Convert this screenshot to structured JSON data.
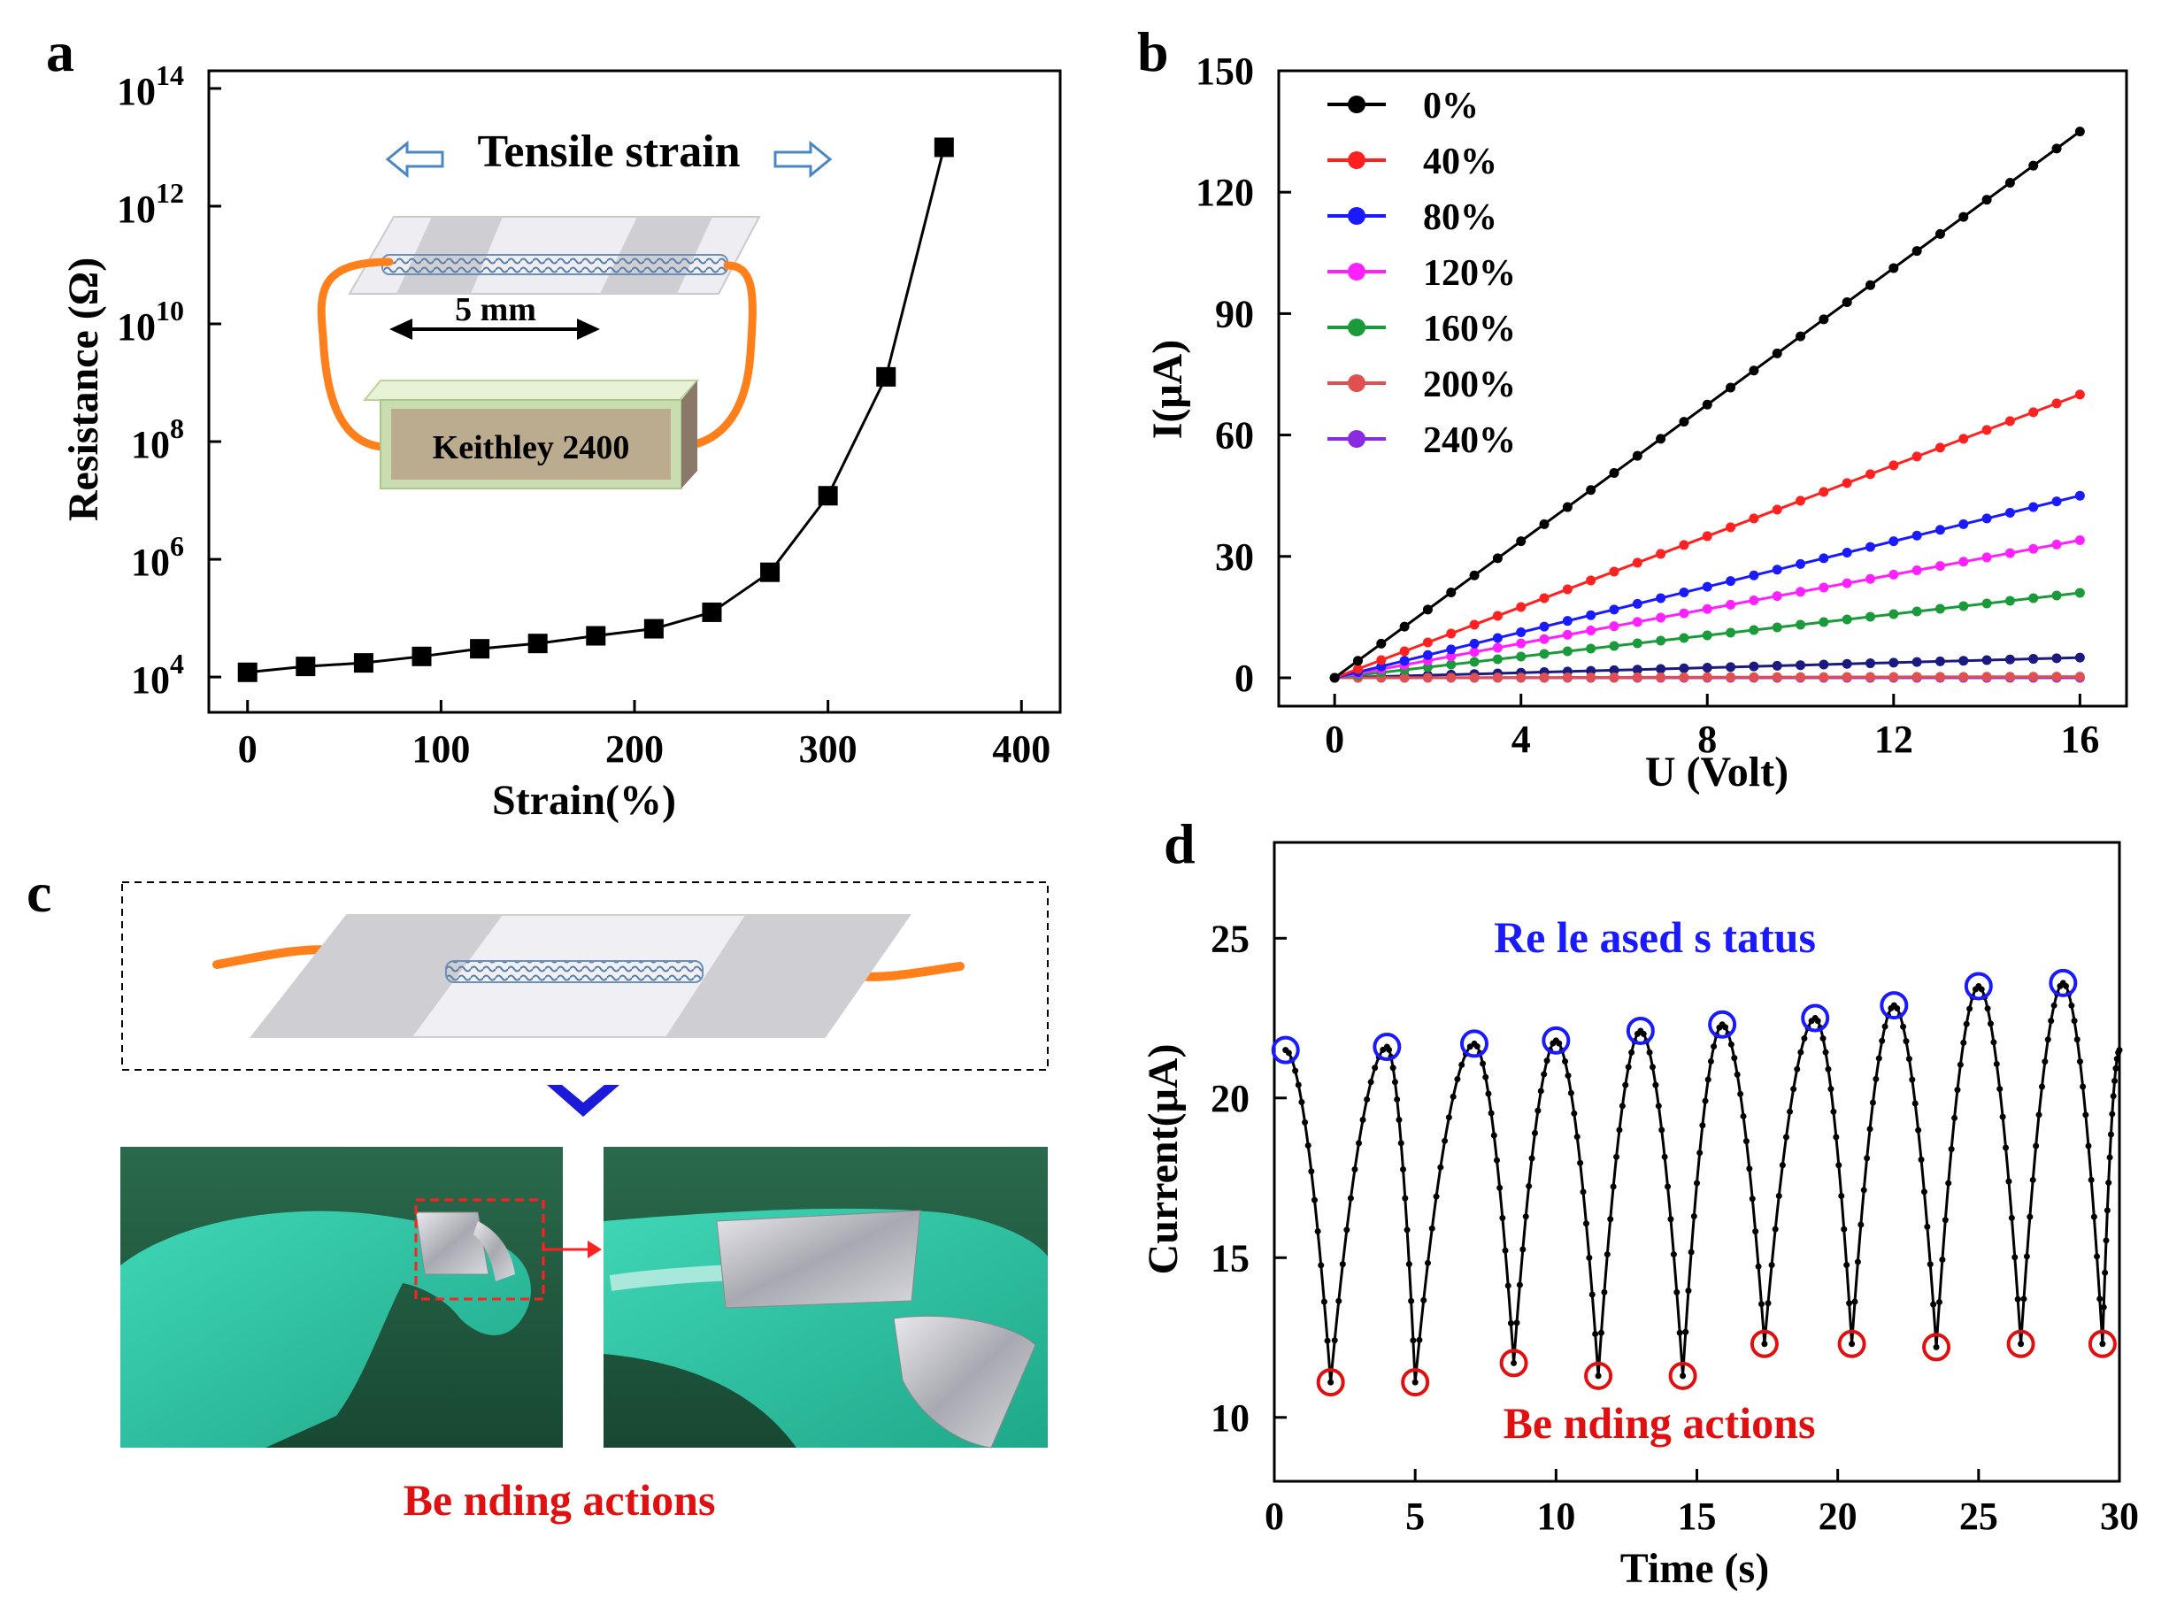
{
  "colors": {
    "black": "#000000",
    "red": "#ff2020",
    "blue": "#1a1aff",
    "magenta": "#ff20ff",
    "green": "#1a9a3a",
    "salmon": "#e05050",
    "purple": "#8a2be2",
    "orange": "#ff7f1a",
    "annot_blue": "#1a1aff",
    "annot_red": "#e01010",
    "arrow_blue": "#4a86c5",
    "marker_blue": "#1a1aff",
    "marker_red": "#e01010"
  },
  "chart_data": [
    {
      "panel": "a",
      "type": "line",
      "xlabel": "Strain(%)",
      "ylabel": "Resistance (Ω)",
      "xlim": [
        -20,
        420
      ],
      "ylim_log10": [
        3.4,
        14.3
      ],
      "yscale": "log",
      "xticks": [
        0,
        100,
        200,
        300,
        400
      ],
      "xtick_labels": [
        "0",
        "100",
        "200",
        "300",
        "400"
      ],
      "yticks_log10": [
        4,
        6,
        8,
        10,
        12,
        14
      ],
      "ytick_labels": [
        [
          "10",
          "4"
        ],
        [
          "10",
          "6"
        ],
        [
          "10",
          "8"
        ],
        [
          "10",
          "10"
        ],
        [
          "10",
          "12"
        ],
        [
          "10",
          "14"
        ]
      ],
      "series": [
        {
          "name": "Resistance",
          "marker": "square",
          "x": [
            0,
            30,
            60,
            90,
            120,
            150,
            180,
            210,
            240,
            270,
            300,
            330,
            360
          ],
          "y_log10": [
            4.08,
            4.18,
            4.24,
            4.35,
            4.48,
            4.57,
            4.7,
            4.82,
            5.1,
            5.78,
            7.08,
            9.1,
            13.0
          ]
        }
      ],
      "inset": {
        "title": "Tensile strain",
        "gap_label": "5 mm",
        "instrument_label": "Keithley 2400"
      }
    },
    {
      "panel": "b",
      "type": "line",
      "xlabel": "U (Volt)",
      "ylabel": "I(μA)",
      "xlim": [
        -1.2,
        17
      ],
      "ylim": [
        -7,
        150
      ],
      "xticks": [
        0,
        4,
        8,
        12,
        16
      ],
      "xtick_labels": [
        "0",
        "4",
        "8",
        "12",
        "16"
      ],
      "yticks": [
        0,
        30,
        60,
        90,
        120,
        150
      ],
      "ytick_labels": [
        "0",
        "30",
        "60",
        "90",
        "120",
        "150"
      ],
      "series": [
        {
          "name": "0%",
          "color": "#000000",
          "x_start": 0,
          "x_end": 16,
          "y_start": 0,
          "y_end": 135
        },
        {
          "name": "40%",
          "color": "#ff2020",
          "x_start": 0,
          "x_end": 16,
          "y_start": 0,
          "y_end": 70
        },
        {
          "name": "80%",
          "color": "#1a1aff",
          "x_start": 0,
          "x_end": 16,
          "y_start": 0,
          "y_end": 45
        },
        {
          "name": "120%",
          "color": "#ff20ff",
          "x_start": 0,
          "x_end": 16,
          "y_start": 0,
          "y_end": 34
        },
        {
          "name": "160%",
          "color": "#1a9a3a",
          "x_start": 0,
          "x_end": 16,
          "y_start": 0,
          "y_end": 21
        },
        {
          "name": "200%",
          "color": "#e05050",
          "x_start": 0,
          "x_end": 16,
          "y_start": 0,
          "y_end": 0.3
        },
        {
          "name": "240%",
          "color": "#8a2be2",
          "x_start": 0,
          "x_end": 16,
          "y_start": 0,
          "y_end": 0
        },
        {
          "name": "",
          "color": "#1a1a80",
          "x_start": 0,
          "x_end": 16,
          "y_start": 0,
          "y_end": 5
        }
      ],
      "legend_position": "top-left"
    },
    {
      "panel": "d",
      "type": "line",
      "xlabel": "Time (s)",
      "ylabel": "Current(μA)",
      "xlim": [
        0,
        30
      ],
      "ylim": [
        8,
        28
      ],
      "xticks": [
        0,
        5,
        10,
        15,
        20,
        25,
        30
      ],
      "xtick_labels": [
        "0",
        "5",
        "10",
        "15",
        "20",
        "25",
        "30"
      ],
      "yticks": [
        10,
        15,
        20,
        25
      ],
      "ytick_labels": [
        "10",
        "15",
        "20",
        "25"
      ],
      "peaks": [
        {
          "t": 0.4,
          "i": 21.5
        },
        {
          "t": 4.0,
          "i": 21.6
        },
        {
          "t": 7.1,
          "i": 21.7
        },
        {
          "t": 10.0,
          "i": 21.8
        },
        {
          "t": 13.0,
          "i": 22.1
        },
        {
          "t": 15.9,
          "i": 22.3
        },
        {
          "t": 19.2,
          "i": 22.5
        },
        {
          "t": 22.0,
          "i": 22.9
        },
        {
          "t": 25.0,
          "i": 23.5
        },
        {
          "t": 28.0,
          "i": 23.6
        }
      ],
      "valleys": [
        {
          "t": 2.0,
          "i": 11.1
        },
        {
          "t": 5.0,
          "i": 11.1
        },
        {
          "t": 8.5,
          "i": 11.7
        },
        {
          "t": 11.5,
          "i": 11.3
        },
        {
          "t": 14.5,
          "i": 11.3
        },
        {
          "t": 17.4,
          "i": 12.3
        },
        {
          "t": 20.5,
          "i": 12.3
        },
        {
          "t": 23.5,
          "i": 12.2
        },
        {
          "t": 26.5,
          "i": 12.3
        },
        {
          "t": 29.4,
          "i": 12.3
        }
      ],
      "end_point": {
        "t": 30.0,
        "i": 21.5
      },
      "annotations": {
        "released": "Re le ased s tatus",
        "bending": "Be nding actions"
      }
    }
  ],
  "panel_c": {
    "caption": "Be nding actions"
  },
  "panel_letters": {
    "a": "a",
    "b": "b",
    "c": "c",
    "d": "d"
  }
}
